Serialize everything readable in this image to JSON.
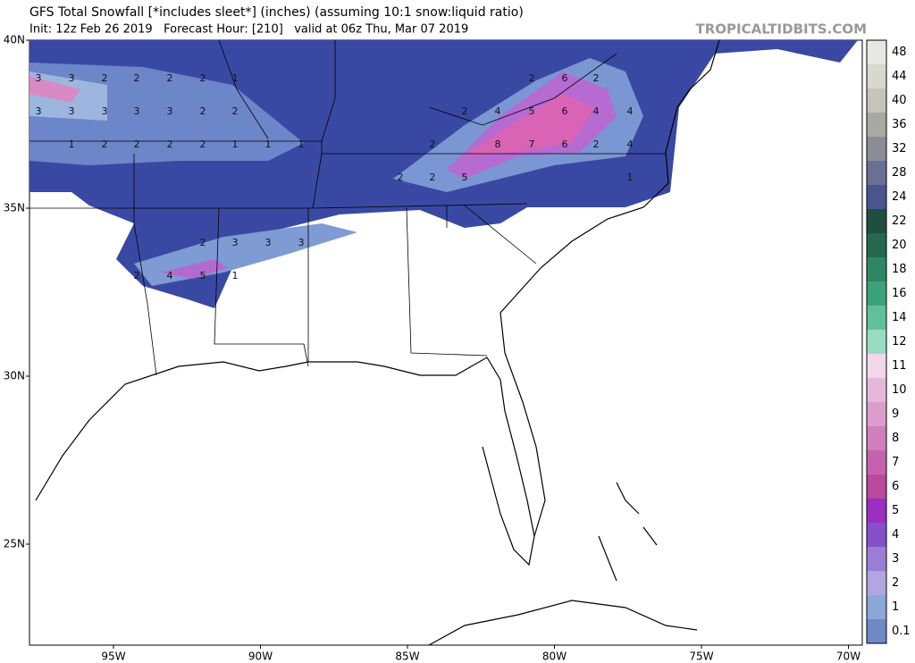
{
  "header": {
    "title": "GFS Total Snowfall [*includes sleet*] (inches) (assuming 10:1 snow:liquid ratio)",
    "subtitle": "Init: 12z Feb 26 2019   Forecast Hour: [210]   valid at 06z Thu, Mar 07 2019",
    "site": "TROPICALTIDBITS.COM"
  },
  "map": {
    "lat_labels": [
      {
        "value": 40,
        "label": "40N"
      },
      {
        "value": 35,
        "label": "35N"
      },
      {
        "value": 30,
        "label": "30N"
      },
      {
        "value": 25,
        "label": "25N"
      }
    ],
    "lon_labels": [
      {
        "value": -95,
        "label": "95W"
      },
      {
        "value": -90,
        "label": "90W"
      },
      {
        "value": -85,
        "label": "85W"
      },
      {
        "value": -80,
        "label": "80W"
      },
      {
        "value": -75,
        "label": "75W"
      },
      {
        "value": -70,
        "label": "70W"
      }
    ],
    "contour_labels": [
      "3",
      "3",
      "2",
      "2",
      "2",
      "2",
      "1",
      "3",
      "3",
      "3",
      "3",
      "3",
      "2",
      "2",
      "1",
      "2",
      "2",
      "2",
      "2",
      "1",
      "1",
      "1",
      "2",
      "3",
      "3",
      "3",
      "2",
      "4",
      "5",
      "1",
      "2",
      "6",
      "2",
      "2",
      "4",
      "5",
      "6",
      "4",
      "4",
      "2",
      "8",
      "7",
      "6",
      "2",
      "4",
      "2",
      "2",
      "5",
      "1"
    ]
  },
  "colorbar": {
    "labels": [
      "48",
      "44",
      "40",
      "36",
      "32",
      "28",
      "24",
      "22",
      "20",
      "18",
      "16",
      "14",
      "12",
      "11",
      "10",
      "9",
      "8",
      "7",
      "6",
      "5",
      "4",
      "3",
      "2",
      "1",
      "0.1"
    ]
  }
}
